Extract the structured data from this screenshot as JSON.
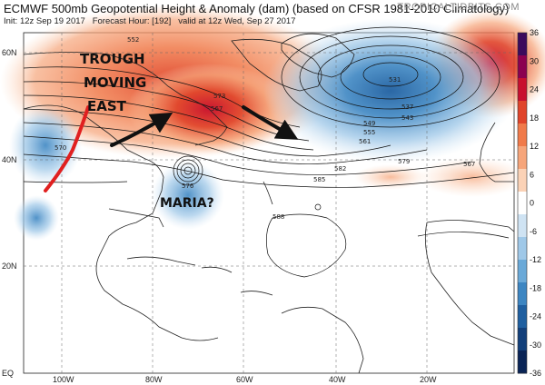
{
  "header": {
    "title": "ECMWF 500mb Geopotential Height & Anomaly (dam) (based on CFSR 1981-2010 Climatology)",
    "init": "Init: 12z Sep 19 2017",
    "forecast_hour": "Forecast Hour: [192]",
    "valid": "valid at 12z Wed, Sep 27 2017",
    "brand": "TROPICALTIDBITS.COM"
  },
  "axes": {
    "lat_labels": [
      "60N",
      "40N",
      "20N",
      "EQ"
    ],
    "lon_labels": [
      "100W",
      "80W",
      "60W",
      "40W",
      "20W"
    ]
  },
  "annotations": {
    "trough_line1": "TROUGH",
    "trough_line2": "MOVING",
    "trough_line3": "EAST",
    "storm": "MARIA?"
  },
  "contour_labels": [
    "552",
    "531",
    "537",
    "543",
    "549",
    "555",
    "561",
    "567",
    "573",
    "579",
    "582",
    "585",
    "588",
    "570",
    "576",
    "567"
  ],
  "colorbar": {
    "ticks": [
      "36",
      "30",
      "24",
      "18",
      "12",
      "6",
      "0",
      "-6",
      "-12",
      "-18",
      "-24",
      "-30",
      "-36"
    ],
    "colors": [
      "#3b0a5c",
      "#8b0050",
      "#c8102e",
      "#e0442a",
      "#f07a4a",
      "#f6a57a",
      "#fbd2b6",
      "#ffffff",
      "#cfe3f3",
      "#9fc8e8",
      "#6aa9d8",
      "#3d86c2",
      "#1f5fa0",
      "#123f7a",
      "#0a2456"
    ]
  }
}
